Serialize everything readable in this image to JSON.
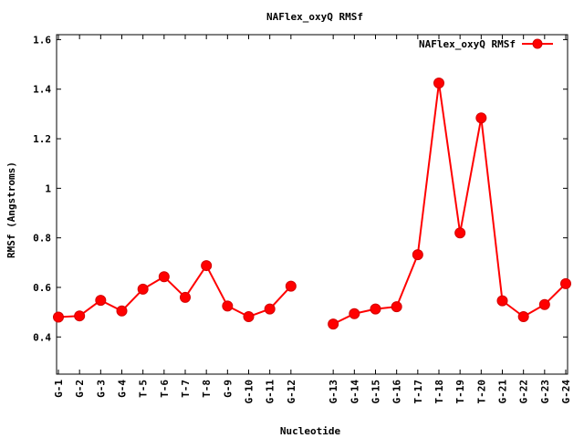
{
  "chart_data": {
    "type": "line",
    "title": "NAFlex_oxyQ RMSf",
    "xlabel": "Nucleotide",
    "ylabel": "RMSf (Angstroms)",
    "ylim": [
      0.25,
      1.62
    ],
    "y_ticks": [
      "0.4",
      "0.6",
      "0.8",
      "1",
      "1.2",
      "1.4",
      "1.6"
    ],
    "y_tick_values": [
      0.4,
      0.6,
      0.8,
      1.0,
      1.2,
      1.4,
      1.6
    ],
    "grid": false,
    "legend_position": "top-right",
    "color": "#ff0000",
    "categories": [
      "G-1",
      "G-2",
      "G-3",
      "G-4",
      "T-5",
      "T-6",
      "T-7",
      "T-8",
      "G-9",
      "G-10",
      "G-11",
      "G-12",
      "",
      "G-13",
      "G-14",
      "G-15",
      "G-16",
      "T-17",
      "T-18",
      "T-19",
      "T-20",
      "G-21",
      "G-22",
      "G-23",
      "G-24"
    ],
    "series": [
      {
        "name": "NAFlex_oxyQ RMSf",
        "values": [
          0.48,
          0.485,
          0.548,
          0.505,
          0.593,
          0.643,
          0.56,
          0.688,
          0.525,
          0.482,
          0.513,
          0.605,
          null,
          0.452,
          0.494,
          0.513,
          0.522,
          0.732,
          1.425,
          0.82,
          1.284,
          0.546,
          0.482,
          0.531,
          0.615
        ]
      }
    ]
  }
}
